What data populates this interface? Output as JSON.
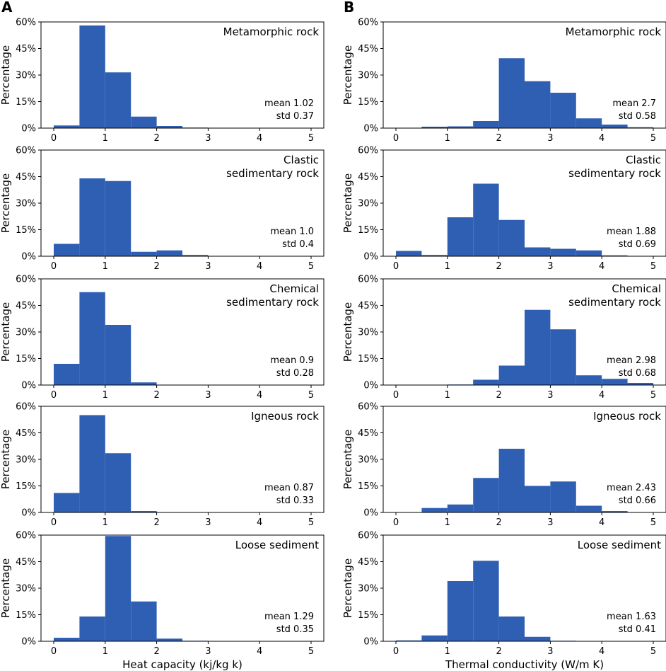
{
  "figure": {
    "panel_letters": [
      "A",
      "B"
    ],
    "bar_color": "#2f5fb3"
  },
  "chart_data": [
    {
      "type": "bar",
      "panel": "A",
      "title_lines": [
        "Metamorphic rock"
      ],
      "bin_edges": [
        0,
        0.5,
        1,
        1.5,
        2,
        2.5,
        3,
        3.5,
        4,
        4.5,
        5
      ],
      "values": [
        1.5,
        58,
        31.5,
        6.5,
        1.2,
        0.3,
        0,
        0,
        0,
        0
      ],
      "mean_label": "mean 1.02",
      "std_label": "std 0.37",
      "xlim": [
        0,
        5
      ],
      "ylim": [
        0,
        60
      ],
      "xticks": [
        "0",
        "1",
        "2",
        "3",
        "4",
        "5"
      ],
      "yticks": [
        "0%",
        "15%",
        "30%",
        "45%",
        "60%"
      ],
      "ylabel": "Percentage",
      "xlabel": ""
    },
    {
      "type": "bar",
      "panel": "A",
      "title_lines": [
        "Clastic",
        "sedimentary rock"
      ],
      "bin_edges": [
        0,
        0.5,
        1,
        1.5,
        2,
        2.5,
        3,
        3.5,
        4,
        4.5,
        5
      ],
      "values": [
        7,
        44,
        42.5,
        2.5,
        3.3,
        0.7,
        0,
        0,
        0,
        0
      ],
      "mean_label": "mean 1.0",
      "std_label": "std 0.4",
      "xlim": [
        0,
        5
      ],
      "ylim": [
        0,
        60
      ],
      "xticks": [
        "0",
        "1",
        "2",
        "3",
        "4",
        "5"
      ],
      "yticks": [
        "0%",
        "15%",
        "30%",
        "45%",
        "60%"
      ],
      "ylabel": "Percentage",
      "xlabel": ""
    },
    {
      "type": "bar",
      "panel": "A",
      "title_lines": [
        "Chemical",
        "sedimentary rock"
      ],
      "bin_edges": [
        0,
        0.5,
        1,
        1.5,
        2,
        2.5,
        3,
        3.5,
        4,
        4.5,
        5
      ],
      "values": [
        12,
        52.5,
        34,
        1.5,
        0,
        0,
        0,
        0,
        0,
        0
      ],
      "mean_label": "mean 0.9",
      "std_label": "std 0.28",
      "xlim": [
        0,
        5
      ],
      "ylim": [
        0,
        60
      ],
      "xticks": [
        "0",
        "1",
        "2",
        "3",
        "4",
        "5"
      ],
      "yticks": [
        "0%",
        "15%",
        "30%",
        "45%",
        "60%"
      ],
      "ylabel": "Percentage",
      "xlabel": ""
    },
    {
      "type": "bar",
      "panel": "A",
      "title_lines": [
        "Igneous rock"
      ],
      "bin_edges": [
        0,
        0.5,
        1,
        1.5,
        2,
        2.5,
        3,
        3.5,
        4,
        4.5,
        5
      ],
      "values": [
        11,
        55,
        33.5,
        0.8,
        0,
        0,
        0,
        0,
        0,
        0
      ],
      "mean_label": "mean 0.87",
      "std_label": "std 0.33",
      "xlim": [
        0,
        5
      ],
      "ylim": [
        0,
        60
      ],
      "xticks": [
        "0",
        "1",
        "2",
        "3",
        "4",
        "5"
      ],
      "yticks": [
        "0%",
        "15%",
        "30%",
        "45%",
        "60%"
      ],
      "ylabel": "Percentage",
      "xlabel": ""
    },
    {
      "type": "bar",
      "panel": "A",
      "title_lines": [
        "Loose sediment"
      ],
      "bin_edges": [
        0,
        0.5,
        1,
        1.5,
        2,
        2.5,
        3,
        3.5,
        4,
        4.5,
        5
      ],
      "values": [
        2,
        14,
        59.5,
        22.5,
        1.5,
        0.3,
        0,
        0,
        0,
        0
      ],
      "mean_label": "mean 1.29",
      "std_label": "std 0.35",
      "xlim": [
        0,
        5
      ],
      "ylim": [
        0,
        60
      ],
      "xticks": [
        "0",
        "1",
        "2",
        "3",
        "4",
        "5"
      ],
      "yticks": [
        "0%",
        "15%",
        "30%",
        "45%",
        "60%"
      ],
      "ylabel": "Percentage",
      "xlabel": "Heat capacity (kj/kg k)"
    },
    {
      "type": "bar",
      "panel": "B",
      "title_lines": [
        "Metamorphic rock"
      ],
      "bin_edges": [
        0,
        0.5,
        1,
        1.5,
        2,
        2.5,
        3,
        3.5,
        4,
        4.5,
        5
      ],
      "values": [
        0,
        0.8,
        1,
        4,
        39.5,
        26.5,
        20,
        5.5,
        2,
        0.5
      ],
      "mean_label": "mean 2.7",
      "std_label": "std 0.58",
      "xlim": [
        0,
        5
      ],
      "ylim": [
        0,
        60
      ],
      "xticks": [
        "0",
        "1",
        "2",
        "3",
        "4",
        "5"
      ],
      "yticks": [
        "0%",
        "15%",
        "30%",
        "45%",
        "60%"
      ],
      "ylabel": "Percentage",
      "xlabel": ""
    },
    {
      "type": "bar",
      "panel": "B",
      "title_lines": [
        "Clastic",
        "sedimentary rock"
      ],
      "bin_edges": [
        0,
        0.5,
        1,
        1.5,
        2,
        2.5,
        3,
        3.5,
        4,
        4.5,
        5
      ],
      "values": [
        3,
        0.7,
        22,
        41,
        20.5,
        5,
        4.2,
        3.3,
        0.5,
        0
      ],
      "mean_label": "mean 1.88",
      "std_label": "std 0.69",
      "xlim": [
        0,
        5
      ],
      "ylim": [
        0,
        60
      ],
      "xticks": [
        "0",
        "1",
        "2",
        "3",
        "4",
        "5"
      ],
      "yticks": [
        "0%",
        "15%",
        "30%",
        "45%",
        "60%"
      ],
      "ylabel": "Percentage",
      "xlabel": ""
    },
    {
      "type": "bar",
      "panel": "B",
      "title_lines": [
        "Chemical",
        "sedimentary rock"
      ],
      "bin_edges": [
        0,
        0.5,
        1,
        1.5,
        2,
        2.5,
        3,
        3.5,
        4,
        4.5,
        5
      ],
      "values": [
        0,
        0,
        0.3,
        3,
        11,
        42.5,
        31.5,
        5.5,
        3.5,
        1.2
      ],
      "mean_label": "mean 2.98",
      "std_label": "std 0.68",
      "xlim": [
        0,
        5
      ],
      "ylim": [
        0,
        60
      ],
      "xticks": [
        "0",
        "1",
        "2",
        "3",
        "4",
        "5"
      ],
      "yticks": [
        "0%",
        "15%",
        "30%",
        "45%",
        "60%"
      ],
      "ylabel": "Percentage",
      "xlabel": ""
    },
    {
      "type": "bar",
      "panel": "B",
      "title_lines": [
        "Igneous rock"
      ],
      "bin_edges": [
        0,
        0.5,
        1,
        1.5,
        2,
        2.5,
        3,
        3.5,
        4,
        4.5,
        5
      ],
      "values": [
        0,
        2.5,
        4.5,
        19.5,
        36,
        15,
        17.5,
        3.8,
        0.8,
        0
      ],
      "mean_label": "mean 2.43",
      "std_label": "std 0.66",
      "xlim": [
        0,
        5
      ],
      "ylim": [
        0,
        60
      ],
      "xticks": [
        "0",
        "1",
        "2",
        "3",
        "4",
        "5"
      ],
      "yticks": [
        "0%",
        "15%",
        "30%",
        "45%",
        "60%"
      ],
      "ylabel": "Percentage",
      "xlabel": ""
    },
    {
      "type": "bar",
      "panel": "B",
      "title_lines": [
        "Loose sediment"
      ],
      "bin_edges": [
        0,
        0.5,
        1,
        1.5,
        2,
        2.5,
        3,
        3.5,
        4,
        4.5,
        5
      ],
      "values": [
        0.5,
        3.3,
        34,
        45.5,
        14,
        2.5,
        0.3,
        0,
        0,
        0
      ],
      "mean_label": "mean 1.63",
      "std_label": "std 0.41",
      "xlim": [
        0,
        5
      ],
      "ylim": [
        0,
        60
      ],
      "xticks": [
        "0",
        "1",
        "2",
        "3",
        "4",
        "5"
      ],
      "yticks": [
        "0%",
        "15%",
        "30%",
        "45%",
        "60%"
      ],
      "ylabel": "Percentage",
      "xlabel": "Thermal conductivity (W/m K)"
    }
  ]
}
